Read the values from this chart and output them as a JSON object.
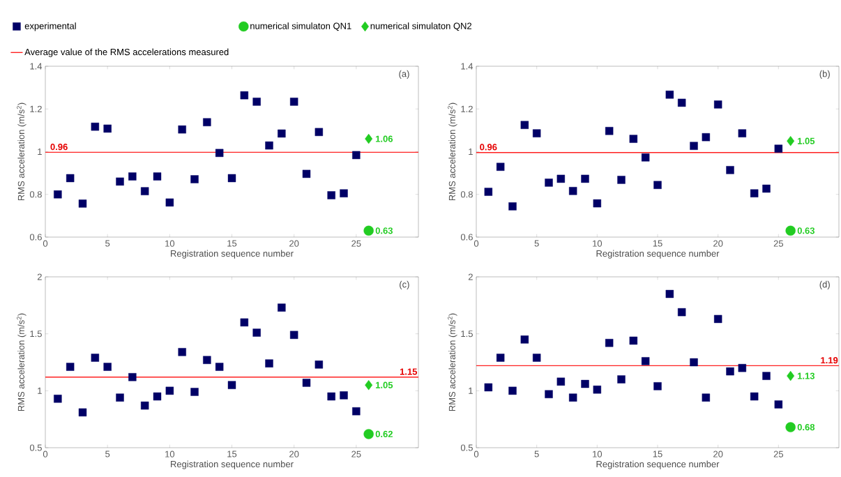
{
  "chart_data": [
    {
      "type": "scatter",
      "title": "(a)",
      "xlabel": "Registration sequence number",
      "ylabel": "RMS acceleration (m/s$^{2}$)",
      "xlim": [
        0,
        30
      ],
      "ylim": [
        0.6,
        1.4
      ],
      "xticks": [
        0,
        5,
        10,
        15,
        20,
        25
      ],
      "yticks": [
        0.6,
        0.8,
        1,
        1.2,
        1.4
      ],
      "legend": "top",
      "series": [
        {
          "name": "experimental",
          "color": "#000066",
          "marker": "square",
          "x": [
            1,
            2,
            3,
            4,
            5,
            6,
            7,
            8,
            9,
            10,
            11,
            12,
            13,
            14,
            15,
            16,
            17,
            18,
            19,
            20,
            21,
            22,
            23,
            24,
            25
          ],
          "values": [
            0.8,
            0.876,
            0.757,
            1.117,
            1.108,
            0.86,
            0.884,
            0.815,
            0.884,
            0.762,
            1.104,
            0.871,
            1.138,
            0.994,
            0.876,
            1.264,
            1.234,
            1.029,
            1.085,
            1.234,
            0.896,
            1.092,
            0.796,
            0.805,
            0.984
          ]
        },
        {
          "name": "numerical simulaton QN1",
          "color": "#22cc22",
          "marker": "circle",
          "x": [
            26
          ],
          "values": [
            0.63
          ],
          "value_labels": [
            "0.63"
          ]
        },
        {
          "name": "numerical simulaton QN2",
          "color": "#22cc22",
          "marker": "diamond",
          "x": [
            26
          ],
          "values": [
            1.06
          ],
          "value_labels": [
            "1.06"
          ]
        },
        {
          "name": "Average value of the RMS accelerations measured",
          "type": "line",
          "color": "#ff2020",
          "x": [
            0,
            30
          ],
          "values": [
            0.997,
            0.997
          ]
        }
      ],
      "annotations": [
        {
          "text": "0.96",
          "x": 1.1,
          "y": 0.997
        }
      ]
    },
    {
      "type": "scatter",
      "title": "(b)",
      "xlabel": "Registration sequence number",
      "ylabel": "RMS acceleration (m/s$^{2}$)",
      "xlim": [
        0,
        30
      ],
      "ylim": [
        0.6,
        1.4
      ],
      "xticks": [
        0,
        5,
        10,
        15,
        20,
        25
      ],
      "yticks": [
        0.6,
        0.8,
        1,
        1.2,
        1.4
      ],
      "series": [
        {
          "color": "#000066",
          "marker": "square",
          "x": [
            1,
            2,
            3,
            4,
            5,
            6,
            7,
            8,
            9,
            10,
            11,
            12,
            13,
            14,
            15,
            16,
            17,
            18,
            19,
            20,
            21,
            22,
            23,
            24,
            25
          ],
          "values": [
            0.812,
            0.929,
            0.744,
            1.125,
            1.086,
            0.855,
            0.873,
            0.816,
            0.873,
            0.758,
            1.097,
            0.868,
            1.06,
            0.973,
            0.844,
            1.267,
            1.229,
            1.027,
            1.068,
            1.221,
            0.914,
            1.086,
            0.805,
            0.827,
            1.014
          ]
        },
        {
          "color": "#22cc22",
          "marker": "circle",
          "x": [
            26
          ],
          "values": [
            0.63
          ],
          "value_labels": [
            "0.63"
          ]
        },
        {
          "color": "#22cc22",
          "marker": "diamond",
          "x": [
            26
          ],
          "values": [
            1.05
          ],
          "value_labels": [
            "1.05"
          ]
        },
        {
          "type": "line",
          "color": "#ff2020",
          "x": [
            0,
            30
          ],
          "values": [
            0.996,
            0.996
          ]
        }
      ],
      "annotations": [
        {
          "text": "0.96",
          "x": 1.0,
          "y": 0.996
        }
      ]
    },
    {
      "type": "scatter",
      "title": "(c)",
      "xlabel": "Registration sequence number",
      "ylabel": "RMS acceleration (m/s$^{2}$)",
      "xlim": [
        0,
        30
      ],
      "ylim": [
        0.5,
        2
      ],
      "xticks": [
        0,
        5,
        10,
        15,
        20,
        25
      ],
      "yticks": [
        0.5,
        1,
        1.5,
        2
      ],
      "series": [
        {
          "color": "#000066",
          "marker": "square",
          "x": [
            1,
            2,
            3,
            4,
            5,
            6,
            7,
            8,
            9,
            10,
            11,
            12,
            13,
            14,
            15,
            16,
            17,
            18,
            19,
            20,
            21,
            22,
            23,
            24,
            25
          ],
          "values": [
            0.93,
            1.21,
            0.81,
            1.29,
            1.21,
            0.94,
            1.12,
            0.87,
            0.95,
            1.0,
            1.34,
            0.99,
            1.27,
            1.21,
            1.05,
            1.6,
            1.51,
            1.24,
            1.73,
            1.49,
            1.07,
            1.23,
            0.95,
            0.96,
            0.82
          ]
        },
        {
          "color": "#22cc22",
          "marker": "circle",
          "x": [
            26
          ],
          "values": [
            0.62
          ],
          "value_labels": [
            "0.62"
          ]
        },
        {
          "color": "#22cc22",
          "marker": "diamond",
          "x": [
            26
          ],
          "values": [
            1.05
          ],
          "value_labels": [
            "1.05"
          ]
        },
        {
          "type": "line",
          "color": "#ff2020",
          "x": [
            0,
            30
          ],
          "values": [
            1.12,
            1.12
          ]
        }
      ],
      "annotations": [
        {
          "text": "1.15",
          "x": 29.2,
          "y": 1.12
        }
      ]
    },
    {
      "type": "scatter",
      "title": "(d)",
      "xlabel": "Registration sequence number",
      "ylabel": "RMS acceleration (m/s$^{2}$)",
      "xlim": [
        0,
        30
      ],
      "ylim": [
        0.5,
        2
      ],
      "xticks": [
        0,
        5,
        10,
        15,
        20,
        25
      ],
      "yticks": [
        0.5,
        1,
        1.5,
        2
      ],
      "series": [
        {
          "color": "#000066",
          "marker": "square",
          "x": [
            1,
            2,
            3,
            4,
            5,
            6,
            7,
            8,
            9,
            10,
            11,
            12,
            13,
            14,
            15,
            16,
            17,
            18,
            19,
            20,
            21,
            22,
            23,
            24,
            25
          ],
          "values": [
            1.03,
            1.29,
            1.0,
            1.45,
            1.29,
            0.97,
            1.08,
            0.94,
            1.06,
            1.01,
            1.42,
            1.1,
            1.44,
            1.26,
            1.04,
            1.85,
            1.69,
            1.25,
            0.94,
            1.63,
            1.17,
            1.2,
            0.95,
            1.13,
            0.88
          ]
        },
        {
          "color": "#22cc22",
          "marker": "circle",
          "x": [
            26
          ],
          "values": [
            0.68
          ],
          "value_labels": [
            "0.68"
          ]
        },
        {
          "color": "#22cc22",
          "marker": "diamond",
          "x": [
            26
          ],
          "values": [
            1.13
          ],
          "value_labels": [
            "1.13"
          ]
        },
        {
          "type": "line",
          "color": "#ff2020",
          "x": [
            0,
            30
          ],
          "values": [
            1.22,
            1.22
          ]
        }
      ],
      "annotations": [
        {
          "text": "1.19",
          "x": 29.2,
          "y": 1.22
        }
      ]
    }
  ]
}
